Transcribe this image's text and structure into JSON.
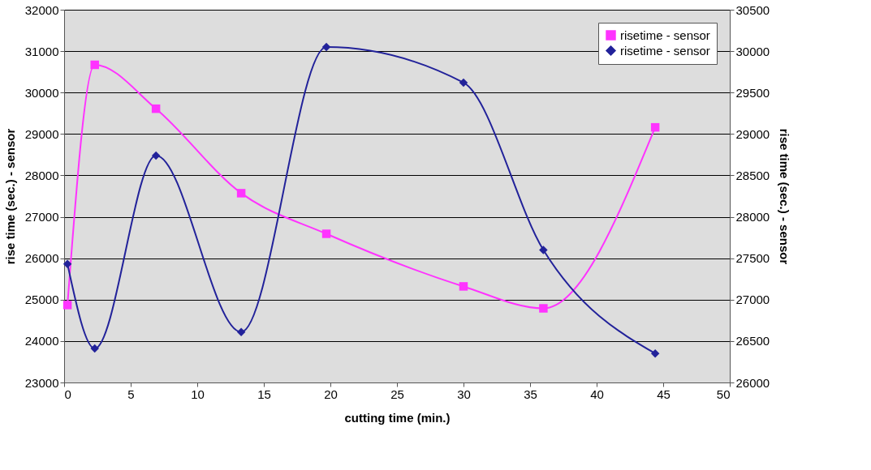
{
  "chart_data": {
    "type": "line",
    "xlabel": "cutting time (min.)",
    "ylabel": "rise time (sec.) - sensor",
    "y2label": "rise time (sec.) - sensor",
    "x": [
      0.25,
      2.3,
      6.9,
      13.3,
      19.7,
      30,
      36,
      44.4
    ],
    "xlim": [
      0,
      50
    ],
    "xticks": [
      0,
      5,
      10,
      15,
      20,
      25,
      30,
      35,
      40,
      45,
      50
    ],
    "ylim": [
      23000,
      32000
    ],
    "yticks": [
      23000,
      24000,
      25000,
      26000,
      27000,
      28000,
      29000,
      30000,
      31000,
      32000
    ],
    "y2lim": [
      26000,
      30500
    ],
    "y2ticks": [
      26000,
      26500,
      27000,
      27500,
      28000,
      28500,
      29000,
      29500,
      30000,
      30500
    ],
    "grid": "y",
    "legend": "top right",
    "line_style": "solid",
    "series": [
      {
        "name": "risetime - sensor",
        "color": "#ff33ff",
        "marker": "square",
        "values": [
          24870,
          30670,
          29610,
          27570,
          26590,
          25320,
          24790,
          29160
        ]
      },
      {
        "name": "risetime - sensor",
        "color": "#22229a",
        "marker": "diamond",
        "axis": "y2",
        "values": [
          27430,
          26410,
          28740,
          26610,
          30050,
          29620,
          27600,
          26350
        ]
      }
    ]
  }
}
